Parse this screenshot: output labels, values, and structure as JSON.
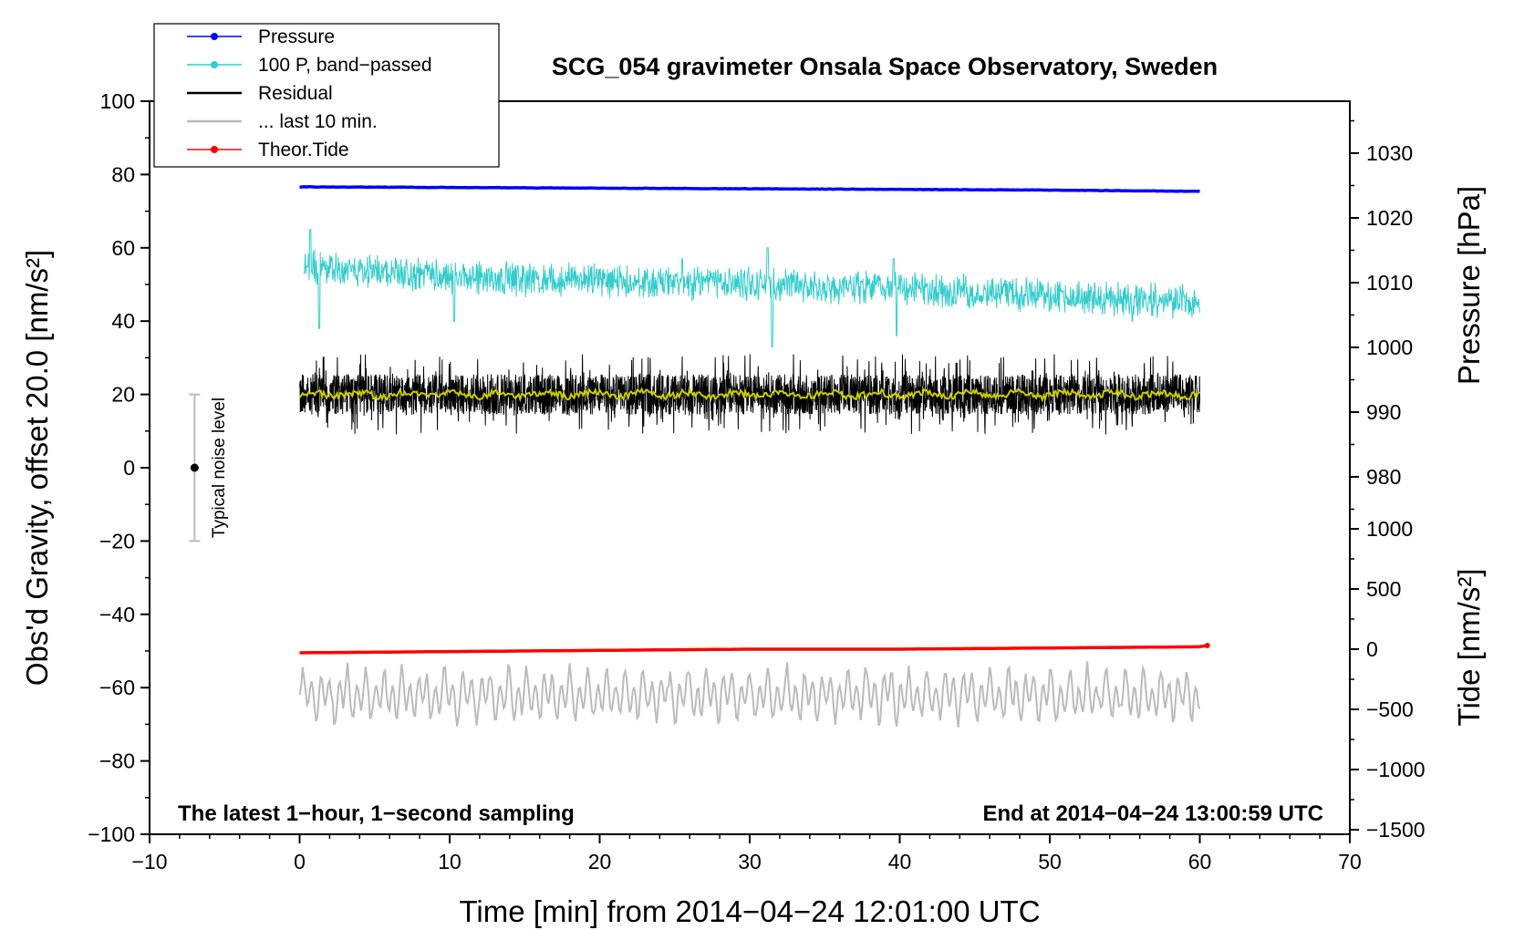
{
  "chart_data": {
    "type": "line",
    "title": "SCG_054 gravimeter Onsala Space Observatory, Sweden",
    "xlabel": "Time [min] from 2014−04−24 12:01:00 UTC",
    "ylabel_left": "Obs'd Gravity, offset 20.0 [nm/s²]",
    "ylabel_right_top": "Pressure [hPa]",
    "ylabel_right_bottom": "Tide [nm/s²]",
    "xlim": [
      -10,
      70
    ],
    "ylim": [
      -100,
      100
    ],
    "pressure_axis_range": [
      975,
      1035
    ],
    "tide_axis_range": [
      -1500,
      1000
    ],
    "x_ticks": [
      "−10",
      "0",
      "10",
      "20",
      "30",
      "40",
      "50",
      "60",
      "70"
    ],
    "y_ticks": [
      "−100",
      "−80",
      "−60",
      "−40",
      "−20",
      "0",
      "20",
      "40",
      "60",
      "80",
      "100"
    ],
    "pressure_ticks": [
      "980",
      "990",
      "1000",
      "1010",
      "1020",
      "1030"
    ],
    "tide_ticks": [
      "−1500",
      "−1000",
      "−500",
      "0",
      "500",
      "1000"
    ],
    "legend": [
      {
        "label": "Pressure",
        "color": "#0000ff",
        "marker": true
      },
      {
        "label": "100 P, band−passed",
        "color": "#33cccc",
        "marker": true
      },
      {
        "label": "Residual",
        "color": "#000000",
        "marker": false
      },
      {
        "label": "... last 10 min.",
        "color": "#bbbbbb",
        "marker": false
      },
      {
        "label": "Theor.Tide",
        "color": "#ff0000",
        "marker": true
      }
    ],
    "legend_position": "top-left",
    "annotation_left": "The latest 1−hour, 1−second sampling",
    "annotation_right": "End at 2014−04−24 13:00:59 UTC",
    "noise_label": "Typical noise level",
    "noise_bar": {
      "x": -7,
      "center": 0,
      "low": -20,
      "high": 20
    },
    "series": [
      {
        "name": "Pressure",
        "axis": "pressure",
        "color": "#0000ff",
        "x": [
          0,
          10,
          20,
          30,
          40,
          50,
          60
        ],
        "values": [
          1024.8,
          1024.7,
          1024.6,
          1024.5,
          1024.4,
          1024.3,
          1024.1
        ]
      },
      {
        "name": "100 P, band−passed",
        "axis": "left",
        "color": "#33cccc",
        "x": [
          0,
          10,
          20,
          30,
          40,
          50,
          60
        ],
        "values": [
          55,
          52,
          51,
          50,
          49,
          47,
          45
        ],
        "noise_amplitude": 5,
        "spike_extremes": [
          65,
          38,
          33,
          60,
          36
        ]
      },
      {
        "name": "Residual",
        "axis": "left",
        "color": "#000000",
        "x": [
          0,
          60
        ],
        "values": [
          20,
          20
        ],
        "range": [
          8,
          32
        ]
      },
      {
        "name": "Residual (smoothed)",
        "axis": "left",
        "color": "#cccc00",
        "x": [
          0,
          60
        ],
        "values": [
          20,
          20
        ]
      },
      {
        "name": "... last 10 min.",
        "axis": "left",
        "color": "#bbbbbb",
        "x": [
          0,
          60
        ],
        "values": [
          -62,
          -62
        ],
        "range": [
          -71,
          -52
        ]
      },
      {
        "name": "Theor.Tide",
        "axis": "tide",
        "color": "#ff0000",
        "x": [
          0,
          10,
          20,
          30,
          40,
          50,
          60,
          60.5
        ],
        "values": [
          -30,
          -20,
          -10,
          0,
          0,
          10,
          20,
          30
        ]
      }
    ]
  }
}
